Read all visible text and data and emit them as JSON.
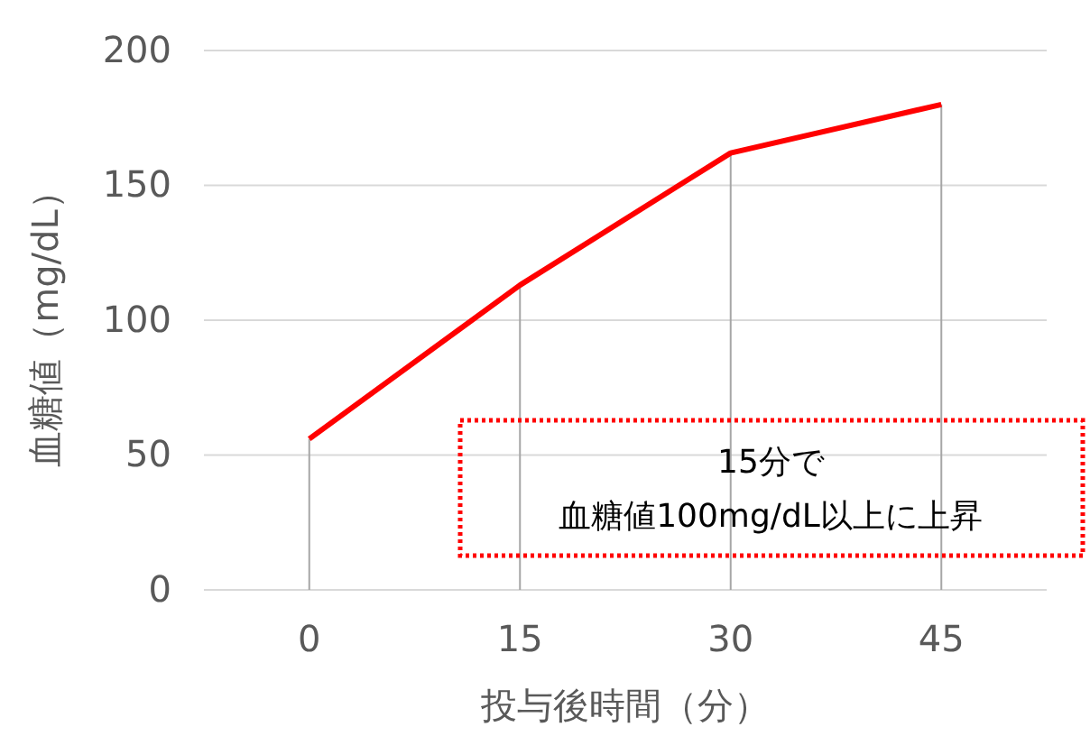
{
  "chart_data": {
    "type": "line",
    "x": [
      0,
      15,
      30,
      45
    ],
    "xlim": [
      -7.5,
      52.5
    ],
    "xticks": [
      0,
      15,
      30,
      45
    ],
    "ylim": [
      0,
      200
    ],
    "yticks": [
      0,
      50,
      100,
      150,
      200
    ],
    "xlabel": "投与後時間（分）",
    "ylabel": "血糖値（mg/dL）",
    "grid": "y",
    "series": [
      {
        "type": "bar",
        "color": "#a6a6a6",
        "values": [
          56,
          113,
          162,
          180
        ]
      },
      {
        "color": "#ff0000",
        "values": [
          56,
          113,
          162,
          180
        ]
      }
    ],
    "annotations": [
      "15分で",
      "血糖値100mg/dL以上に上昇"
    ]
  }
}
